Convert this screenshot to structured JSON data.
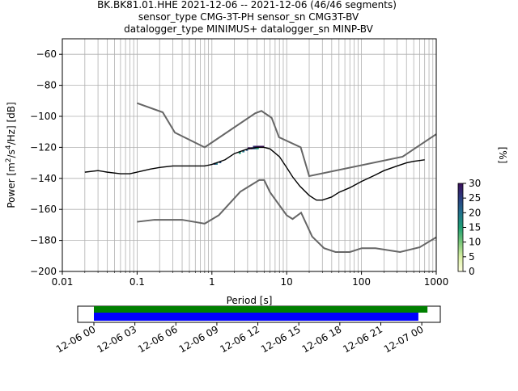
{
  "title_lines": [
    "BK.BK81.01.HHE   2021-12-06 -- 2021-12-06  (46/46 segments)",
    "sensor_type CMG-3T-PH sensor_sn CMG3T-BV",
    "datalogger_type MINIMUS+ datalogger_sn MINP-BV"
  ],
  "chart_data": [
    {
      "type": "heatmap",
      "title": "BK.BK81.01.HHE   2021-12-06 -- 2021-12-06  (46/46 segments)",
      "xlabel": "Period [s]",
      "ylabel": "Power [m²/s⁴/Hz] [dB]",
      "xscale": "log",
      "xlim": [
        0.01,
        1000
      ],
      "ylim": [
        -200,
        -50
      ],
      "x_ticks": [
        0.01,
        0.1,
        1,
        10,
        100,
        1000
      ],
      "x_tick_labels": [
        "0.01",
        "0.1",
        "1",
        "10",
        "100",
        "1000"
      ],
      "y_ticks": [
        -200,
        -180,
        -160,
        -140,
        -120,
        -100,
        -80,
        -60
      ],
      "y_tick_labels": [
        "−200",
        "−180",
        "−160",
        "−140",
        "−120",
        "−100",
        "−80",
        "−60"
      ],
      "grid": true,
      "colorbar": {
        "label": "[%]",
        "range": [
          0,
          30
        ],
        "ticks": [
          0,
          5,
          10,
          15,
          20,
          25,
          30
        ],
        "tick_labels": [
          "0",
          "5",
          "10",
          "15",
          "20",
          "25",
          "30"
        ],
        "colors": [
          "#ffffe0",
          "#d9f0a3",
          "#78c679",
          "#1d9e73",
          "#21708c",
          "#2a3d80",
          "#3b0f5a"
        ]
      },
      "noise_models": [
        {
          "id": "nhnm",
          "x": [
            0.1,
            0.22,
            0.32,
            0.8,
            3.8,
            4.6,
            6.3,
            7.9,
            15.4,
            20,
            354.8,
            1000
          ],
          "y": [
            -91.5,
            -97.4,
            -110.5,
            -120,
            -98,
            -96.5,
            -101,
            -113.5,
            -120,
            -138.5,
            -126,
            -111.5
          ]
        },
        {
          "id": "nlnm",
          "x": [
            0.1,
            0.17,
            0.4,
            0.8,
            1.24,
            2.4,
            4.3,
            5,
            6,
            10,
            12,
            15.6,
            21.9,
            31.6,
            45,
            70,
            101,
            154,
            328,
            600,
            1000
          ],
          "y": [
            -168,
            -166.7,
            -166.7,
            -169.2,
            -163.7,
            -148.6,
            -141.1,
            -141.1,
            -149,
            -163.8,
            -166.2,
            -162.1,
            -177.5,
            -185,
            -187.5,
            -187.5,
            -185,
            -185,
            -187.5,
            -184.4,
            -178
          ]
        }
      ],
      "mode": {
        "x": [
          0.02,
          0.03,
          0.04,
          0.06,
          0.08,
          0.1,
          0.15,
          0.2,
          0.3,
          0.5,
          0.8,
          1,
          1.5,
          2,
          3,
          4,
          5,
          6,
          8,
          10,
          12,
          15,
          20,
          25,
          30,
          40,
          50,
          70,
          100,
          150,
          200,
          300,
          400,
          500,
          700
        ],
        "y": [
          -136,
          -135,
          -136,
          -137,
          -137,
          -136,
          -134,
          -133,
          -132,
          -132,
          -132,
          -131,
          -128,
          -124,
          -121,
          -120,
          -120,
          -121,
          -126,
          -133,
          -139,
          -145,
          -151,
          -154,
          -154,
          -152,
          -149,
          -146,
          -142,
          -138,
          -135,
          -132,
          -130,
          -129,
          -128
        ]
      },
      "spread": {
        "x": [
          0.02,
          0.03,
          0.05,
          0.08,
          0.1,
          0.15,
          0.2,
          0.3,
          0.5,
          0.8,
          1,
          1.5,
          2,
          3,
          4,
          6,
          8,
          10,
          15,
          20,
          30,
          50,
          100,
          200,
          400,
          700
        ],
        "upper": [
          -134,
          -129,
          -129,
          -130,
          -130,
          -129,
          -127,
          -125,
          -126,
          -129,
          -130,
          -127,
          -123,
          -120,
          -119,
          -119,
          -123,
          -128,
          -138,
          -146,
          -150,
          -145,
          -137,
          -131,
          -126,
          -124
        ],
        "lower": [
          -139,
          -140,
          -140,
          -141,
          -140,
          -139,
          -138,
          -138,
          -137,
          -135,
          -133,
          -131,
          -127,
          -123,
          -121,
          -123,
          -130,
          -138,
          -150,
          -156,
          -158,
          -153,
          -146,
          -139,
          -134,
          -132
        ]
      }
    },
    {
      "type": "bar",
      "xlabel": "",
      "ylabel": "",
      "time_range": [
        "2021-12-06 00:00",
        "2021-12-07 01:00"
      ],
      "x_ticks": [
        "2021-12-06 00:00",
        "2021-12-06 03:00",
        "2021-12-06 06:00",
        "2021-12-06 09:00",
        "2021-12-06 12:00",
        "2021-12-06 15:00",
        "2021-12-06 18:00",
        "2021-12-06 21:00",
        "2021-12-07 00:00"
      ],
      "x_tick_labels": [
        "12-06 00",
        "12-06 03",
        "12-06 06",
        "12-06 09",
        "12-06 12",
        "12-06 15",
        "12-06 18",
        "12-06 21",
        "12-07 00"
      ],
      "series": [
        {
          "id": "data-coverage",
          "color": "#008000",
          "start": "2021-12-06 00:00",
          "end": "2021-12-07 00:25"
        },
        {
          "id": "psd-coverage",
          "color": "#0000ff",
          "start": "2021-12-06 00:00",
          "end": "2021-12-06 23:45"
        }
      ]
    }
  ]
}
